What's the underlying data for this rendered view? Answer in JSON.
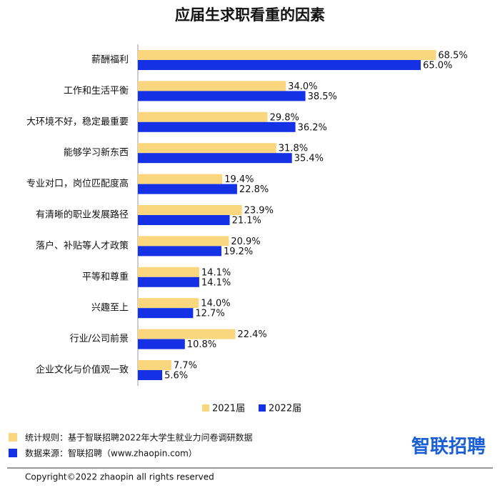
{
  "chart_data": {
    "type": "hbar",
    "title": "应届生求职看重的因素",
    "categories": [
      "薪酬福利",
      "工作和生活平衡",
      "大环境不好，稳定最重要",
      "能够学习新东西",
      "专业对口，岗位匹配度高",
      "有清晰的职业发展路径",
      "落户、补贴等人才政策",
      "平等和尊重",
      "兴趣至上",
      "行业/公司前景",
      "企业文化与价值观一致"
    ],
    "series": [
      {
        "name": "2021届",
        "color": "#fad77f",
        "values": [
          68.5,
          34.0,
          29.8,
          31.8,
          19.4,
          23.9,
          20.9,
          14.1,
          14.0,
          22.4,
          7.7
        ],
        "value_labels": [
          "68.5%",
          "34.0%",
          "29.8%",
          "31.8%",
          "19.4%",
          "23.9%",
          "20.9%",
          "14.1%",
          "14.0%",
          "22.4%",
          "7.7%"
        ]
      },
      {
        "name": "2022届",
        "color": "#1531e6",
        "values": [
          65.0,
          38.5,
          36.2,
          35.4,
          22.8,
          21.1,
          19.2,
          14.1,
          12.7,
          10.8,
          5.6
        ],
        "value_labels": [
          "65.0%",
          "38.5%",
          "36.2%",
          "35.4%",
          "22.8%",
          "21.1%",
          "19.2%",
          "14.1%",
          "12.7%",
          "10.8%",
          "5.6%"
        ]
      }
    ],
    "xlim": [
      0,
      75
    ],
    "notes": [
      "统计规则：基于智联招聘2022年大学生就业力问卷调研数据",
      "数据来源：智联招聘（www.zhaopin.com）"
    ],
    "logo": "智联招聘",
    "copyright": "Copyright©2022 zhaopin all rights reserved"
  }
}
